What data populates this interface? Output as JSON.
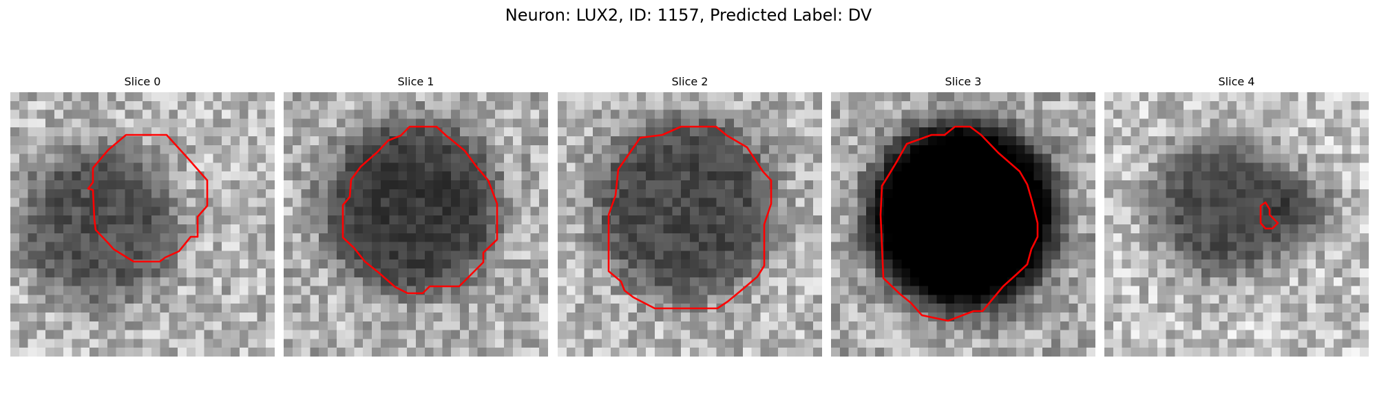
{
  "figure": {
    "title": "Neuron: LUX2, ID: 1157, Predicted Label: DV"
  },
  "contour_color": "#ff0000",
  "colormap": "gray",
  "panels": [
    {
      "title": "Slice 0"
    },
    {
      "title": "Slice 1"
    },
    {
      "title": "Slice 2"
    },
    {
      "title": "Slice 3"
    },
    {
      "title": "Slice 4"
    }
  ]
}
